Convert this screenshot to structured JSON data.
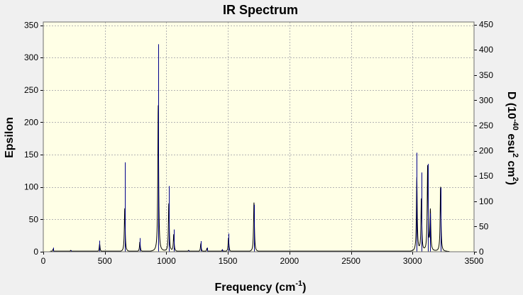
{
  "chart_data": {
    "type": "line",
    "title": "IR Spectrum",
    "xlabel": {
      "main": "Frequency (cm",
      "sup": "-1",
      "end": ")"
    },
    "ylabel": "Epsilon",
    "y2label": {
      "a": "D (10",
      "sup1": "-40",
      "b": " esu",
      "sup2": "2",
      "c": " cm",
      "sup3": "2",
      "d": ")"
    },
    "xlim": [
      0,
      3500
    ],
    "ylim": [
      0,
      355
    ],
    "y2lim": [
      0,
      455
    ],
    "xticks": [
      0,
      500,
      1000,
      1500,
      2000,
      2500,
      3000,
      3500
    ],
    "yticks": [
      0,
      50,
      100,
      150,
      200,
      250,
      300,
      350
    ],
    "y2ticks": [
      0,
      50,
      100,
      150,
      200,
      250,
      300,
      350,
      400,
      450
    ],
    "grid": true,
    "colors": {
      "plot_background": "#ffffe6",
      "grid": "#b4b4b4",
      "spectrum": "#000000",
      "sticks": "#00008b",
      "window_background": "#f0f0f0"
    },
    "series": [
      {
        "kind": "broadened-spectrum",
        "axis": "left",
        "halfwidth": 4,
        "baseline": 1,
        "peaks": [
          {
            "x": 80,
            "y": 4
          },
          {
            "x": 222,
            "y": 2
          },
          {
            "x": 458,
            "y": 12
          },
          {
            "x": 662,
            "y": 67
          },
          {
            "x": 785,
            "y": 15
          },
          {
            "x": 934,
            "y": 226
          },
          {
            "x": 1020,
            "y": 74
          },
          {
            "x": 1060,
            "y": 26
          },
          {
            "x": 1180,
            "y": 2
          },
          {
            "x": 1280,
            "y": 12
          },
          {
            "x": 1330,
            "y": 5
          },
          {
            "x": 1455,
            "y": 3
          },
          {
            "x": 1505,
            "y": 21
          },
          {
            "x": 1712,
            "y": 76
          },
          {
            "x": 3035,
            "y": 114
          },
          {
            "x": 3072,
            "y": 80
          },
          {
            "x": 3123,
            "y": 131
          },
          {
            "x": 3145,
            "y": 62
          },
          {
            "x": 3228,
            "y": 100
          }
        ]
      },
      {
        "kind": "sticks",
        "axis": "right",
        "peaks": [
          {
            "x": 80,
            "y": 8
          },
          {
            "x": 222,
            "y": 3
          },
          {
            "x": 458,
            "y": 22
          },
          {
            "x": 662,
            "y": 177
          },
          {
            "x": 785,
            "y": 27
          },
          {
            "x": 934,
            "y": 411
          },
          {
            "x": 1020,
            "y": 130
          },
          {
            "x": 1060,
            "y": 44
          },
          {
            "x": 1180,
            "y": 3
          },
          {
            "x": 1280,
            "y": 21
          },
          {
            "x": 1330,
            "y": 8
          },
          {
            "x": 1455,
            "y": 5
          },
          {
            "x": 1505,
            "y": 36
          },
          {
            "x": 1712,
            "y": 93
          },
          {
            "x": 3035,
            "y": 196
          },
          {
            "x": 3072,
            "y": 157
          },
          {
            "x": 3123,
            "y": 174
          },
          {
            "x": 3145,
            "y": 76
          },
          {
            "x": 3228,
            "y": 127
          }
        ]
      }
    ]
  }
}
